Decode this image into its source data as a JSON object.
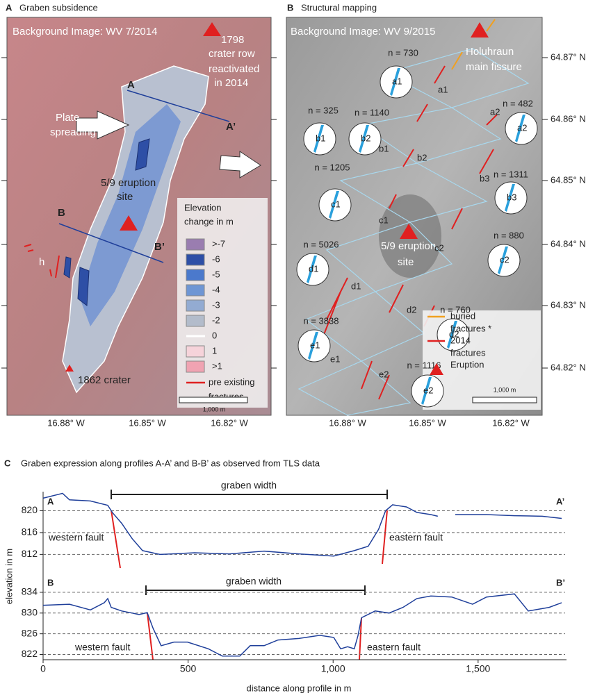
{
  "panel_a": {
    "letter": "A",
    "title": "Graben subsidence",
    "background": "Background Image: WV 7/2014",
    "annotations": [
      "1798",
      "crater row",
      "reactivated",
      "in 2014",
      "A",
      "A’",
      "B",
      "B’",
      "Plate",
      "spreading",
      "5/9 eruption",
      "site",
      "h",
      "1862 crater"
    ],
    "legend": {
      "title": [
        "Elevation",
        "change in m"
      ],
      "items": [
        {
          "label": ">-7",
          "color": "#9a7db0"
        },
        {
          "label": "-6",
          "color": "#2e4fa6"
        },
        {
          "label": "-5",
          "color": "#4b79cc"
        },
        {
          "label": "-4",
          "color": "#6f96d4"
        },
        {
          "label": "-3",
          "color": "#93abd2"
        },
        {
          "label": "-2",
          "color": "#b3bccb"
        },
        {
          "label": "0",
          "color": "#ffffff"
        },
        {
          "label": "1",
          "color": "#f6d3da"
        },
        {
          "label": ">1",
          "color": "#f0a3b2"
        }
      ],
      "line_label": [
        "pre existing",
        "fractures"
      ],
      "line_color": "#e02020"
    },
    "scale": "1,000 m",
    "lon_ticks": [
      "16.88° W",
      "16.85° W",
      "16.82° W"
    ]
  },
  "panel_b": {
    "letter": "B",
    "title": "Structural mapping",
    "background": "Background Image: WV 9/2015",
    "annotations": [
      "Holuhraun",
      "main fissure",
      "5/9 eruption",
      "site"
    ],
    "stereonets": [
      {
        "n": "n = 730",
        "label": "a1"
      },
      {
        "n": "n = 325",
        "label": "b1"
      },
      {
        "n": "n = 1140",
        "label": "b2"
      },
      {
        "n": "n = 482",
        "label": "a2"
      },
      {
        "n": "n = 1205",
        "label": "c1"
      },
      {
        "n": "n = 1311",
        "label": "b3"
      },
      {
        "n": "n = 5026",
        "label": "d1"
      },
      {
        "n": "n = 880",
        "label": "c2"
      },
      {
        "n": "n = 3838",
        "label": "e1"
      },
      {
        "n": "n = 760",
        "label": "d2"
      },
      {
        "n": "n = 1116",
        "label": "e2"
      }
    ],
    "zone_labels": [
      "a1",
      "a2",
      "b1",
      "b2",
      "b3",
      "c1",
      "c2",
      "d1",
      "d2",
      "e1",
      "e2"
    ],
    "legend": [
      {
        "label": [
          "buried",
          "fractures *"
        ],
        "color": "#f0a020"
      },
      {
        "label": [
          "2014",
          "fractures"
        ],
        "color": "#e02020"
      },
      {
        "label": [
          "Eruption"
        ],
        "color": "#e02020"
      }
    ],
    "scale": "1,000 m",
    "lon_ticks": [
      "16.88° W",
      "16.85° W",
      "16.82° W"
    ],
    "lat_ticks": [
      "64.87° N",
      "64.86° N",
      "64.85° N",
      "64.84° N",
      "64.83° N",
      "64.82° N"
    ]
  },
  "panel_c": {
    "letter": "C",
    "title": "Graben expression along profiles A-A’ and B-B’ as observed from TLS data",
    "y_label": "elevation in m",
    "x_label": "distance along profile in m"
  },
  "chart_data": [
    {
      "type": "line",
      "start_label": "A",
      "end_label": "A’",
      "span_label": "graben width",
      "fault_labels": [
        "western fault",
        "eastern fault"
      ],
      "x": [
        0,
        67,
        91,
        163,
        223,
        240,
        271,
        307,
        343,
        403,
        522,
        642,
        762,
        882,
        1002,
        1073,
        1121,
        1157,
        1181,
        1205,
        1253,
        1289,
        1337,
        1361,
        1390,
        1421,
        1529,
        1625,
        1721,
        1788
      ],
      "series": [
        {
          "color": "#1f3f9a",
          "values": [
            822.3,
            823.2,
            822,
            821.8,
            821,
            819.6,
            817.7,
            814.9,
            812.7,
            812,
            812.3,
            812.1,
            812.6,
            812.1,
            811.7,
            812.7,
            813.5,
            816.6,
            820,
            821.1,
            820.7,
            819.7,
            819.3,
            819,
            null,
            819.3,
            819.3,
            819.1,
            819,
            818.6
          ]
        }
      ],
      "xlim": [
        0,
        1800
      ],
      "ylim": [
        809.5,
        823.5
      ],
      "yticks": [
        812,
        816,
        820
      ],
      "grid": true
    },
    {
      "type": "line",
      "start_label": "B",
      "end_label": "B’",
      "span_label": "graben width",
      "fault_labels": [
        "western fault",
        "eastern fault"
      ],
      "x": [
        0,
        91,
        163,
        211,
        223,
        235,
        271,
        307,
        331,
        359,
        379,
        407,
        451,
        498,
        570,
        618,
        678,
        714,
        762,
        810,
        882,
        954,
        1002,
        1026,
        1050,
        1073,
        1086,
        1098,
        1145,
        1193,
        1241,
        1289,
        1337,
        1409,
        1481,
        1529,
        1625,
        1673,
        1745,
        1788
      ],
      "series": [
        {
          "color": "#1f3f9a",
          "values": [
            831.5,
            831.7,
            830.6,
            832,
            832.8,
            831.1,
            830.4,
            830,
            829.7,
            830.1,
            827.1,
            823.7,
            824.4,
            824.4,
            823.1,
            821.7,
            821.7,
            823.7,
            823.7,
            824.8,
            825.1,
            825.7,
            825.3,
            823.1,
            823.5,
            823.1,
            825.7,
            829.1,
            830.4,
            830,
            831.1,
            832.8,
            833.3,
            833.1,
            831.7,
            833.1,
            833.7,
            830.4,
            831.1,
            832
          ]
        }
      ],
      "xlim": [
        0,
        1800
      ],
      "ylim": [
        821,
        836
      ],
      "yticks": [
        822,
        826,
        830,
        834
      ],
      "xticks": [
        0,
        500,
        {
          "value": 1000,
          "label": "1,000"
        },
        {
          "value": 1500,
          "label": "1,500"
        }
      ],
      "grid": true
    }
  ]
}
